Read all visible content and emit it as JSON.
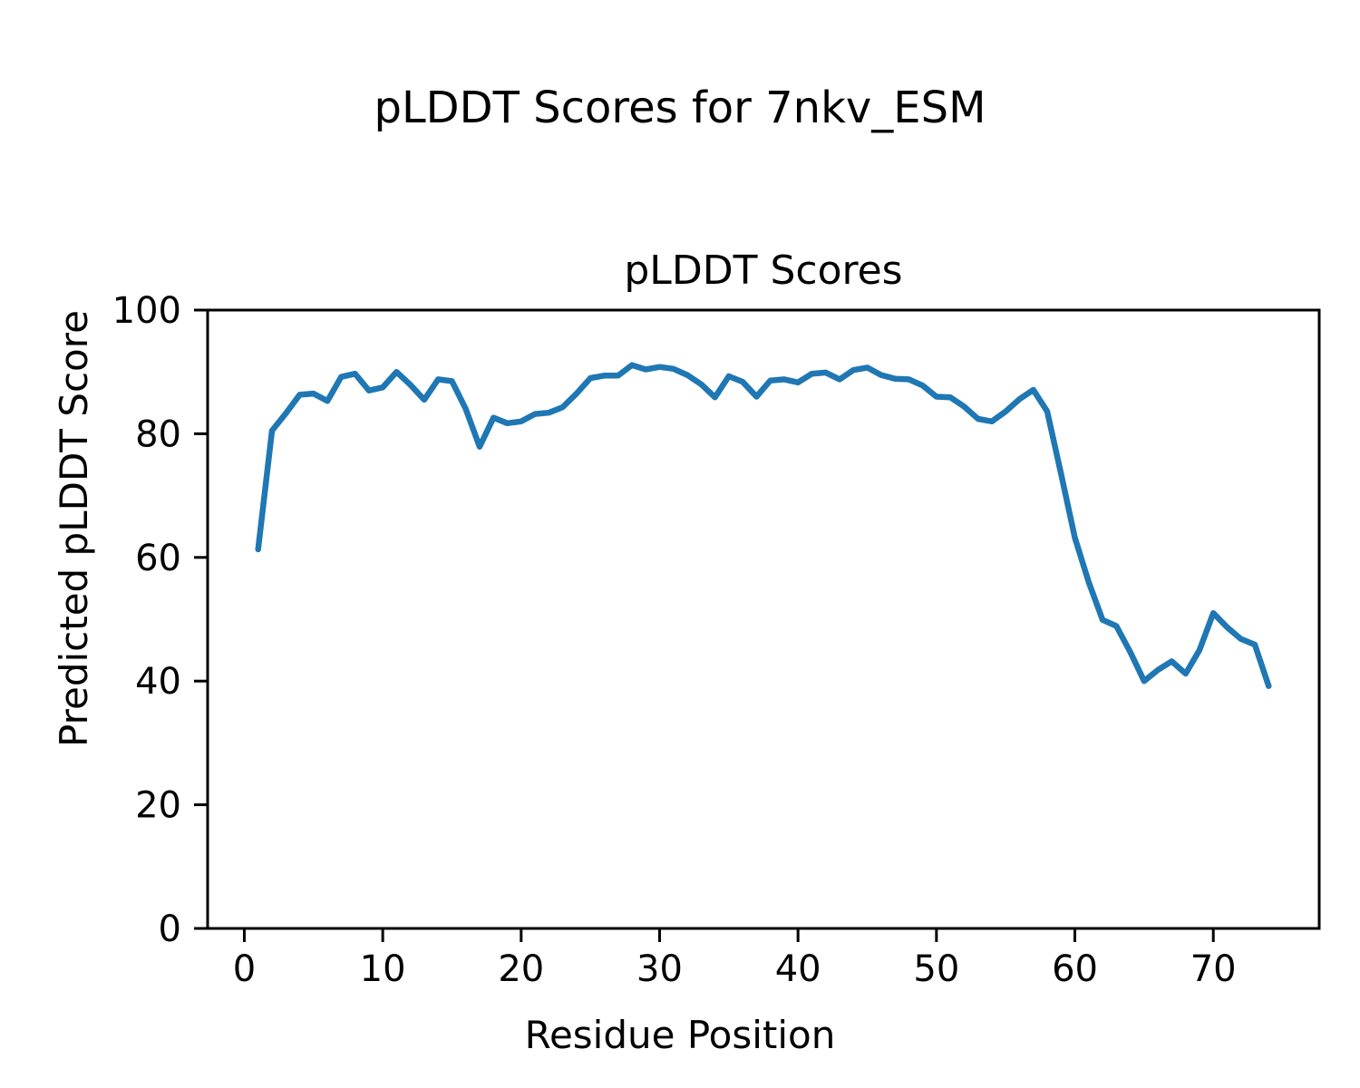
{
  "figure": {
    "title": "pLDDT Scores for 7nkv_ESM",
    "background": "#ffffff"
  },
  "chart_data": {
    "type": "line",
    "title": "pLDDT Scores",
    "xlabel": "Residue Position",
    "ylabel": "Predicted pLDDT Score",
    "series_name": "pLDDT",
    "line_color": "#1f77b4",
    "line_width": 6.5,
    "grid": false,
    "legend": "none",
    "xlim": [
      -2.65,
      77.65
    ],
    "ylim": [
      0,
      100
    ],
    "xticks": [
      0,
      10,
      20,
      30,
      40,
      50,
      60,
      70
    ],
    "yticks": [
      0,
      20,
      40,
      60,
      80,
      100
    ],
    "x": [
      1,
      2,
      3,
      4,
      5,
      6,
      7,
      8,
      9,
      10,
      11,
      12,
      13,
      14,
      15,
      16,
      17,
      18,
      19,
      20,
      21,
      22,
      23,
      24,
      25,
      26,
      27,
      28,
      29,
      30,
      31,
      32,
      33,
      34,
      35,
      36,
      37,
      38,
      39,
      40,
      41,
      42,
      43,
      44,
      45,
      46,
      47,
      48,
      49,
      50,
      51,
      52,
      53,
      54,
      55,
      56,
      57,
      58,
      59,
      60,
      61,
      62,
      63,
      64,
      65,
      66,
      67,
      68,
      69,
      70,
      71,
      72,
      73,
      74
    ],
    "y": [
      61.3,
      80.5,
      83.3,
      86.3,
      86.5,
      85.3,
      89.2,
      89.7,
      87.0,
      87.5,
      90.0,
      87.9,
      85.5,
      88.8,
      88.5,
      84.0,
      77.9,
      82.6,
      81.7,
      82.0,
      83.2,
      83.4,
      84.3,
      86.5,
      89.0,
      89.4,
      89.4,
      91.1,
      90.4,
      90.8,
      90.5,
      89.5,
      88.0,
      85.9,
      89.3,
      88.4,
      86.0,
      88.6,
      88.8,
      88.3,
      89.7,
      89.9,
      88.8,
      90.3,
      90.7,
      89.5,
      88.9,
      88.8,
      87.8,
      86.0,
      85.9,
      84.4,
      82.4,
      82.0,
      83.6,
      85.6,
      87.1,
      83.6,
      73.5,
      63.2,
      56.0,
      49.9,
      48.9,
      44.7,
      40.0,
      41.8,
      43.2,
      41.2,
      45.0,
      51.0,
      48.7,
      46.8,
      45.9,
      39.2
    ]
  }
}
